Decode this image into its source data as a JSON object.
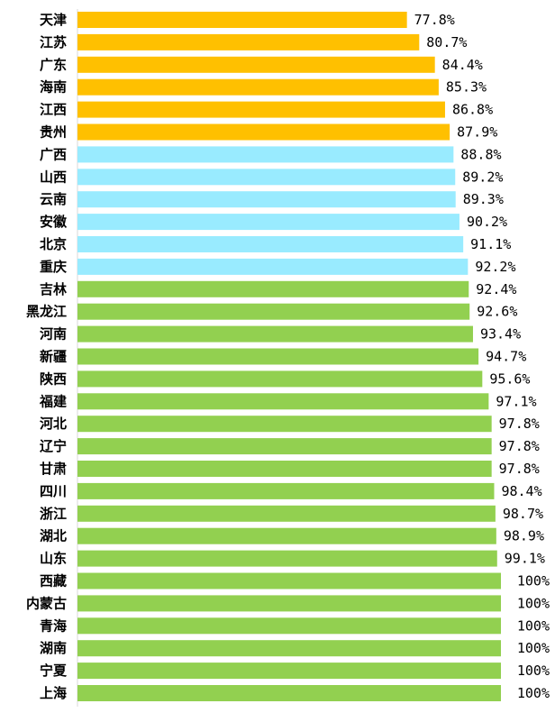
{
  "chart_data": {
    "type": "bar",
    "orientation": "horizontal",
    "title": "",
    "xlabel": "",
    "ylabel": "",
    "xlim": [
      0,
      100
    ],
    "grid": false,
    "legend": "none",
    "colors": {
      "orange": "#FFC000",
      "light_blue": "#99EBFF",
      "green": "#92D050"
    },
    "categories": [
      "天津",
      "江苏",
      "广东",
      "海南",
      "江西",
      "贵州",
      "广西",
      "山西",
      "云南",
      "安徽",
      "北京",
      "重庆",
      "吉林",
      "黑龙江",
      "河南",
      "新疆",
      "陕西",
      "福建",
      "河北",
      "辽宁",
      "甘肃",
      "四川",
      "浙江",
      "湖北",
      "山东",
      "西藏",
      "内蒙古",
      "青海",
      "湖南",
      "宁夏",
      "上海"
    ],
    "values": [
      77.8,
      80.7,
      84.4,
      85.3,
      86.8,
      87.9,
      88.8,
      89.2,
      89.3,
      90.2,
      91.1,
      92.2,
      92.4,
      92.6,
      93.4,
      94.7,
      95.6,
      97.1,
      97.8,
      97.8,
      97.8,
      98.4,
      98.7,
      98.9,
      99.1,
      100,
      100,
      100,
      100,
      100,
      100
    ],
    "value_labels": [
      "77.8%",
      "80.7%",
      "84.4%",
      "85.3%",
      "86.8%",
      "87.9%",
      "88.8%",
      "89.2%",
      "89.3%",
      "90.2%",
      "91.1%",
      "92.2%",
      "92.4%",
      "92.6%",
      "93.4%",
      "94.7%",
      "95.6%",
      "97.1%",
      "97.8%",
      "97.8%",
      "97.8%",
      "98.4%",
      "98.7%",
      "98.9%",
      "99.1%",
      "100%",
      "100%",
      "100%",
      "100%",
      "100%",
      "100%"
    ],
    "bar_colors": [
      "orange",
      "orange",
      "orange",
      "orange",
      "orange",
      "orange",
      "light_blue",
      "light_blue",
      "light_blue",
      "light_blue",
      "light_blue",
      "light_blue",
      "green",
      "green",
      "green",
      "green",
      "green",
      "green",
      "green",
      "green",
      "green",
      "green",
      "green",
      "green",
      "green",
      "green",
      "green",
      "green",
      "green",
      "green",
      "green"
    ]
  }
}
